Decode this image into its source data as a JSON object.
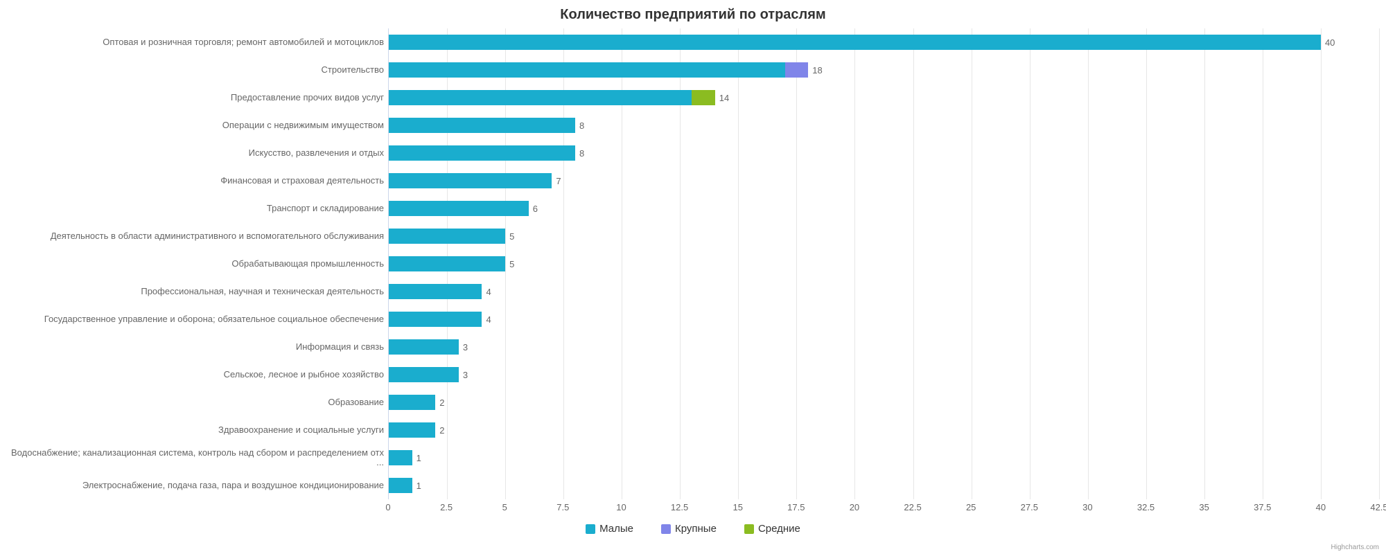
{
  "chart": {
    "type": "bar",
    "title": "Количество предприятий по отраслям",
    "title_fontsize": 20,
    "title_color": "#333333",
    "background_color": "#ffffff",
    "grid_color": "#e6e6e6",
    "axis_line_color": "#ccd6eb",
    "label_color": "#666666",
    "label_fontsize": 13,
    "credits": "Highcharts.com",
    "xlim": [
      0,
      42.5
    ],
    "xtick_step": 2.5,
    "xticks": [
      "0",
      "2.5",
      "5",
      "7.5",
      "10",
      "12.5",
      "15",
      "17.5",
      "20",
      "22.5",
      "25",
      "27.5",
      "30",
      "32.5",
      "35",
      "37.5",
      "40",
      "42.5"
    ],
    "categories": [
      "Оптовая и розничная торговля; ремонт автомобилей и мотоциклов",
      "Строительство",
      "Предоставление прочих видов услуг",
      "Операции с недвижимым имуществом",
      "Искусство, развлечения и отдых",
      "Финансовая и страховая деятельность",
      "Транспорт и складирование",
      "Деятельность в области административного и вспомогательного обслуживания",
      "Обрабатывающая промышленность",
      "Профессиональная, научная и техническая деятельность",
      "Государственное управление и оборона; обязательное социальное обеспечение",
      "Информация и связь",
      "Сельское, лесное и рыбное хозяйство",
      "Образование",
      "Здравоохранение и социальные услуги",
      "Водоснабжение; канализационная система, контроль над сбором и распределением отх ...",
      "Электроснабжение, подача газа, пара и воздушное кондиционирование"
    ],
    "series": [
      {
        "name": "Малые",
        "color": "#1aadce",
        "values": [
          40,
          17,
          13,
          8,
          8,
          7,
          6,
          5,
          5,
          4,
          4,
          3,
          3,
          2,
          2,
          1,
          1
        ]
      },
      {
        "name": "Крупные",
        "color": "#8085e9",
        "values": [
          0,
          1,
          0,
          0,
          0,
          0,
          0,
          0,
          0,
          0,
          0,
          0,
          0,
          0,
          0,
          0,
          0
        ]
      },
      {
        "name": "Средние",
        "color": "#8bbc21",
        "values": [
          0,
          0,
          1,
          0,
          0,
          0,
          0,
          0,
          0,
          0,
          0,
          0,
          0,
          0,
          0,
          0,
          0
        ]
      }
    ],
    "totals": [
      40,
      18,
      14,
      8,
      8,
      7,
      6,
      5,
      5,
      4,
      4,
      3,
      3,
      2,
      2,
      1,
      1
    ],
    "bar_height_ratio": 0.55
  }
}
